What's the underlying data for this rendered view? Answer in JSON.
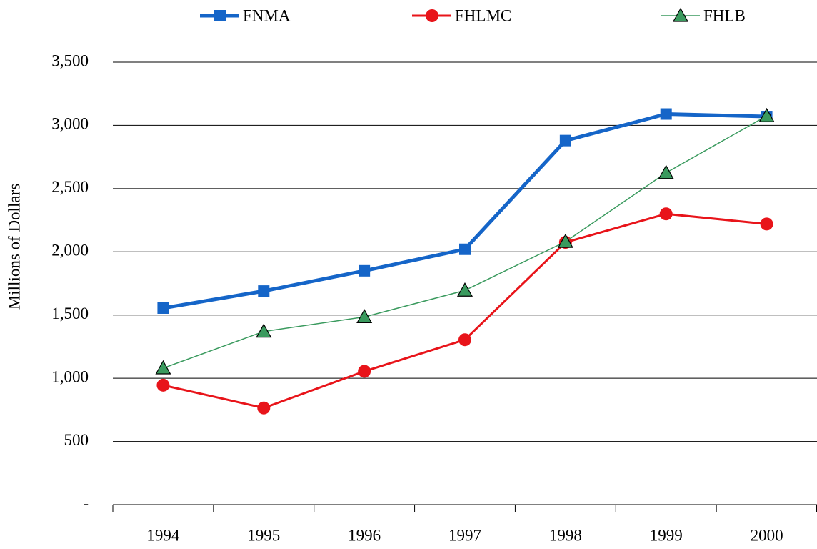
{
  "chart_data": {
    "type": "line",
    "y_label": "Millions of Dollars",
    "categories": [
      "1994",
      "1995",
      "1996",
      "1997",
      "1998",
      "1999",
      "2000"
    ],
    "series": [
      {
        "name": "FNMA",
        "color": "#1565c8",
        "marker": "square",
        "values": [
          1555,
          1690,
          1850,
          2020,
          2880,
          3090,
          3070
        ]
      },
      {
        "name": "FHLMC",
        "color": "#e8141a",
        "marker": "circle",
        "values": [
          945,
          765,
          1055,
          1305,
          2075,
          2300,
          2220
        ]
      },
      {
        "name": "FHLB",
        "color": "#3a9a5e",
        "marker": "triangle",
        "values": [
          1080,
          1370,
          1485,
          1695,
          2080,
          2625,
          3075
        ]
      }
    ],
    "ylim": [
      0,
      3500
    ],
    "yticks": [
      {
        "value": 0,
        "label": "-"
      },
      500,
      {
        "value": 1000,
        "label": "1,000"
      },
      {
        "value": 1500,
        "label": "1,500"
      },
      {
        "value": 2000,
        "label": "2,000"
      },
      {
        "value": 2500,
        "label": "2,500"
      },
      {
        "value": 3000,
        "label": "3,000"
      },
      {
        "value": 3500,
        "label": "3,500"
      }
    ],
    "grid": true,
    "legend": "top"
  }
}
